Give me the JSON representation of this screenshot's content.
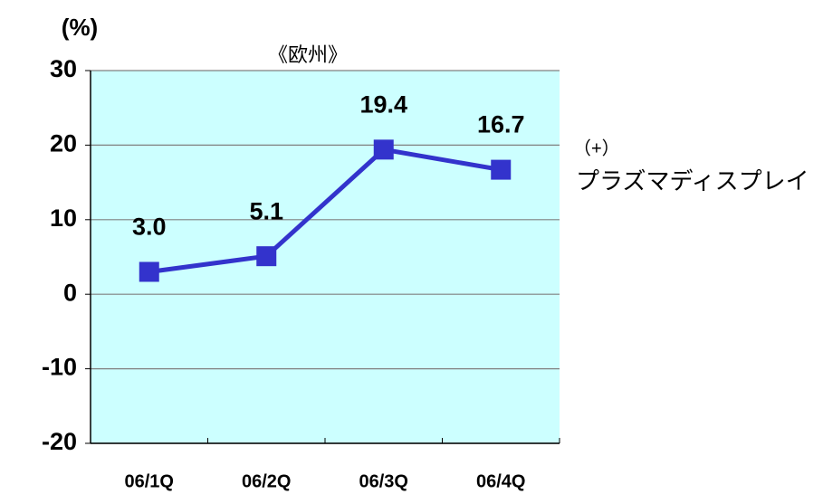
{
  "chart_data": {
    "type": "line",
    "title": "《欧州》",
    "y_label": "(%)",
    "annotations": [
      "（+）",
      "プラズマディスプレイ"
    ],
    "categories": [
      "06/1Q",
      "06/2Q",
      "06/3Q",
      "06/4Q"
    ],
    "series": [
      {
        "color": "#3333cc",
        "values": [
          3.0,
          5.1,
          19.4,
          16.7
        ],
        "value_labels": [
          "3.0",
          "5.1",
          "19.4",
          "16.7"
        ]
      }
    ],
    "ylim": [
      -20,
      30
    ],
    "yticks": [
      -20,
      -10,
      0,
      10,
      20,
      30
    ],
    "grid": true,
    "background": "#ccffff"
  }
}
